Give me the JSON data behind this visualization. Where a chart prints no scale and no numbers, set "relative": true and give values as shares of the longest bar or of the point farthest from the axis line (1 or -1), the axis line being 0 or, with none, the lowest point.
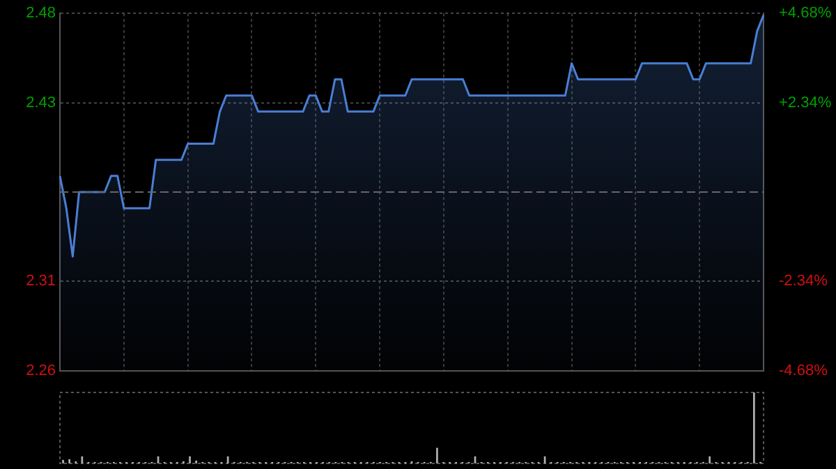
{
  "chart_data": [
    {
      "type": "area",
      "categories": [
        null,
        null,
        null,
        null,
        null,
        null,
        null,
        null,
        null,
        null,
        null,
        null,
        null,
        null,
        null,
        null,
        null,
        null,
        null,
        null,
        null,
        null,
        null,
        null,
        null,
        null,
        null,
        null,
        null,
        null,
        null,
        null,
        null,
        null,
        null,
        null,
        null,
        null,
        null,
        null,
        null,
        null,
        null,
        null,
        null,
        null,
        null,
        null,
        null,
        null,
        null,
        null,
        null,
        null,
        null,
        null,
        null,
        null,
        null,
        null,
        null,
        null,
        null,
        null,
        null,
        null,
        null,
        null,
        null,
        null,
        null,
        null,
        null,
        null,
        null,
        null,
        null,
        null,
        null,
        null,
        null,
        null,
        null,
        null,
        null,
        null,
        null,
        null,
        null,
        null,
        null,
        null,
        null,
        null,
        null,
        null,
        null,
        null,
        null,
        null,
        null,
        null,
        null,
        null,
        null,
        null,
        null,
        null,
        null,
        null,
        null
      ],
      "series": [
        {
          "color": "#4a7fd4",
          "values": [
            2.38,
            2.36,
            2.33,
            2.37,
            2.37,
            2.37,
            2.37,
            2.37,
            2.38,
            2.38,
            2.36,
            2.36,
            2.36,
            2.36,
            2.36,
            2.39,
            2.39,
            2.39,
            2.39,
            2.39,
            2.4,
            2.4,
            2.4,
            2.4,
            2.4,
            2.42,
            2.43,
            2.43,
            2.43,
            2.43,
            2.43,
            2.42,
            2.42,
            2.42,
            2.42,
            2.42,
            2.42,
            2.42,
            2.42,
            2.43,
            2.43,
            2.42,
            2.42,
            2.44,
            2.44,
            2.42,
            2.42,
            2.42,
            2.42,
            2.42,
            2.43,
            2.43,
            2.43,
            2.43,
            2.43,
            2.44,
            2.44,
            2.44,
            2.44,
            2.44,
            2.44,
            2.44,
            2.44,
            2.44,
            2.43,
            2.43,
            2.43,
            2.43,
            2.43,
            2.43,
            2.43,
            2.43,
            2.43,
            2.43,
            2.43,
            2.43,
            2.43,
            2.43,
            2.43,
            2.43,
            2.45,
            2.44,
            2.44,
            2.44,
            2.44,
            2.44,
            2.44,
            2.44,
            2.44,
            2.44,
            2.44,
            2.45,
            2.45,
            2.45,
            2.45,
            2.45,
            2.45,
            2.45,
            2.45,
            2.44,
            2.44,
            2.45,
            2.45,
            2.45,
            2.45,
            2.45,
            2.45,
            2.45,
            2.45,
            2.47,
            2.48
          ]
        }
      ],
      "ylim": [
        2.259,
        2.481
      ],
      "yticks": [
        {
          "value": 2.259,
          "label": "2.26"
        },
        {
          "value": 2.3145,
          "label": "2.31"
        },
        {
          "value": 2.4255,
          "label": "2.43"
        },
        {
          "value": 2.481,
          "label": "2.48"
        }
      ],
      "y2lim": [
        -4.68,
        4.68
      ],
      "y2ticks": [
        {
          "value": -4.68,
          "label": "-4.68%"
        },
        {
          "value": -2.34,
          "label": "-2.34%"
        },
        {
          "value": 2.34,
          "label": "+2.34%"
        },
        {
          "value": 4.68,
          "label": "+4.68%"
        }
      ],
      "ref_lines": [
        {
          "axis": "y",
          "value": 2.37,
          "color": "#666666",
          "line_style": "dashed"
        }
      ],
      "grid": true,
      "legend": false,
      "marker": "none",
      "line_style": "solid"
    },
    {
      "type": "bar",
      "relative": true,
      "categories": [
        null,
        null,
        null,
        null,
        null,
        null,
        null,
        null,
        null,
        null,
        null,
        null,
        null,
        null,
        null,
        null,
        null,
        null,
        null,
        null,
        null,
        null,
        null,
        null,
        null,
        null,
        null,
        null,
        null,
        null,
        null,
        null,
        null,
        null,
        null,
        null,
        null,
        null,
        null,
        null,
        null,
        null,
        null,
        null,
        null,
        null,
        null,
        null,
        null,
        null,
        null,
        null,
        null,
        null,
        null,
        null,
        null,
        null,
        null,
        null,
        null,
        null,
        null,
        null,
        null,
        null,
        null,
        null,
        null,
        null,
        null,
        null,
        null,
        null,
        null,
        null,
        null,
        null,
        null,
        null,
        null,
        null,
        null,
        null,
        null,
        null,
        null,
        null,
        null,
        null,
        null,
        null,
        null,
        null,
        null,
        null,
        null,
        null,
        null,
        null,
        null,
        null,
        null,
        null,
        null,
        null,
        null,
        null,
        null,
        null,
        null
      ],
      "color": "#b0b0b0",
      "values": [
        0.05,
        0.06,
        0.03,
        0.1,
        0.02,
        0.02,
        0.02,
        0.02,
        0.02,
        0.02,
        0.02,
        0.02,
        0.02,
        0.02,
        0.02,
        0.1,
        0.02,
        0.02,
        0.02,
        0.03,
        0.1,
        0.04,
        0.02,
        0.02,
        0.02,
        0.02,
        0.1,
        0.02,
        0.02,
        0.02,
        0.02,
        0.02,
        0.02,
        0.02,
        0.02,
        0.02,
        0.02,
        0.02,
        0.02,
        0.02,
        0.02,
        0.02,
        0.02,
        0.02,
        0.02,
        0.02,
        0.02,
        0.02,
        0.02,
        0.02,
        0.02,
        0.02,
        0.02,
        0.02,
        0.02,
        0.03,
        0.02,
        0.02,
        0.02,
        0.22,
        0.02,
        0.02,
        0.02,
        0.02,
        0.02,
        0.1,
        0.02,
        0.02,
        0.02,
        0.02,
        0.02,
        0.02,
        0.02,
        0.02,
        0.02,
        0.02,
        0.1,
        0.02,
        0.02,
        0.02,
        0.02,
        0.02,
        0.02,
        0.02,
        0.02,
        0.02,
        0.02,
        0.02,
        0.02,
        0.02,
        0.02,
        0.02,
        0.02,
        0.02,
        0.02,
        0.02,
        0.02,
        0.02,
        0.02,
        0.02,
        0.02,
        0.02,
        0.1,
        0.02,
        0.02,
        0.02,
        0.02,
        0.02,
        0.02,
        1,
        0.02
      ],
      "grid": false,
      "legend": false
    }
  ]
}
